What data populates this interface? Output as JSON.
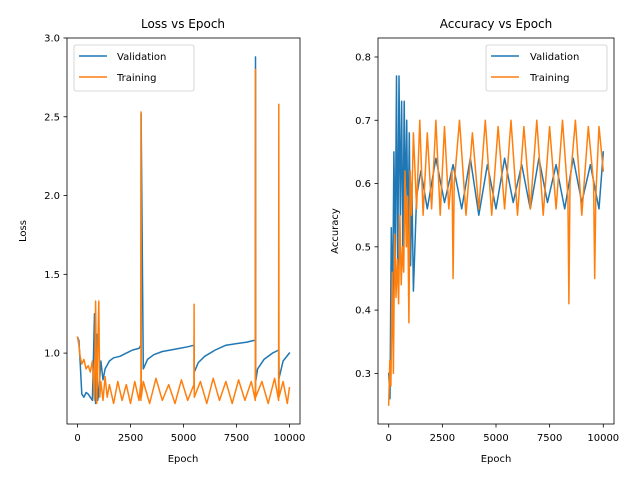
{
  "chart_data": [
    {
      "type": "line",
      "title": "Loss vs Epoch",
      "xlabel": "Epoch",
      "ylabel": "Loss",
      "xlim": [
        -500,
        10500
      ],
      "ylim": [
        0.55,
        3.0
      ],
      "xticks": [
        0,
        2500,
        5000,
        7500,
        10000
      ],
      "xtick_labels": [
        "0",
        "2500",
        "5000",
        "7500",
        "10000"
      ],
      "yticks": [
        1.0,
        1.5,
        2.0,
        2.5,
        3.0
      ],
      "ytick_labels": [
        "1.0",
        "1.5",
        "2.0",
        "2.5",
        "3.0"
      ],
      "grid": false,
      "legend": "top-left",
      "series": [
        {
          "name": "Validation",
          "color": "#1f77b4",
          "x": [
            0,
            60,
            120,
            200,
            300,
            400,
            500,
            600,
            700,
            800,
            850,
            900,
            950,
            1000,
            1100,
            1200,
            1300,
            1500,
            1700,
            2000,
            2300,
            2600,
            2900,
            2990,
            3000,
            3100,
            3300,
            3600,
            4000,
            4400,
            4800,
            5200,
            5500,
            5510,
            5700,
            6000,
            6500,
            7000,
            7500,
            8000,
            8300,
            8390,
            8400,
            8410,
            8500,
            8800,
            9200,
            9500,
            9510,
            9700,
            10000
          ],
          "values": [
            1.1,
            1.08,
            0.95,
            0.74,
            0.72,
            0.75,
            0.74,
            0.72,
            0.7,
            1.25,
            0.68,
            1.12,
            0.7,
            0.75,
            0.95,
            0.83,
            0.9,
            0.95,
            0.97,
            0.98,
            1.0,
            1.02,
            1.03,
            1.05,
            2.52,
            0.9,
            0.96,
            0.99,
            1.01,
            1.02,
            1.03,
            1.04,
            1.05,
            0.88,
            0.94,
            0.98,
            1.02,
            1.05,
            1.06,
            1.07,
            1.08,
            1.08,
            2.88,
            0.82,
            0.9,
            0.96,
            1.0,
            1.02,
            0.84,
            0.95,
            1.0
          ]
        },
        {
          "name": "Training",
          "color": "#ff7f0e",
          "x": [
            0,
            60,
            120,
            200,
            300,
            400,
            500,
            600,
            700,
            800,
            850,
            900,
            950,
            1000,
            1050,
            1100,
            1200,
            1300,
            1400,
            1500,
            1700,
            1900,
            2100,
            2300,
            2500,
            2700,
            2900,
            2980,
            2990,
            3000,
            3010,
            3100,
            3400,
            3700,
            4000,
            4300,
            4600,
            4900,
            5200,
            5490,
            5500,
            5510,
            5800,
            6100,
            6400,
            6700,
            7000,
            7300,
            7600,
            7900,
            8200,
            8390,
            8400,
            8410,
            8700,
            9000,
            9300,
            9490,
            9500,
            9510,
            9700,
            9900,
            10000
          ],
          "values": [
            1.1,
            1.05,
            0.98,
            0.93,
            0.96,
            0.9,
            0.92,
            0.88,
            0.95,
            0.7,
            1.33,
            0.68,
            1.0,
            1.33,
            0.72,
            0.82,
            0.7,
            0.85,
            0.72,
            0.8,
            0.68,
            0.82,
            0.7,
            0.8,
            0.68,
            0.82,
            0.7,
            0.8,
            0.7,
            2.53,
            0.72,
            0.82,
            0.68,
            0.84,
            0.7,
            0.8,
            0.68,
            0.83,
            0.7,
            0.8,
            1.31,
            0.72,
            0.82,
            0.68,
            0.84,
            0.7,
            0.82,
            0.68,
            0.83,
            0.7,
            0.82,
            0.7,
            2.8,
            0.72,
            0.82,
            0.68,
            0.84,
            0.7,
            2.58,
            0.72,
            0.82,
            0.68,
            0.78
          ]
        }
      ]
    },
    {
      "type": "line",
      "title": "Accuracy vs Epoch",
      "xlabel": "Epoch",
      "ylabel": "Accuracy",
      "xlim": [
        -500,
        10500
      ],
      "ylim": [
        0.22,
        0.83
      ],
      "xticks": [
        0,
        2500,
        5000,
        7500,
        10000
      ],
      "xtick_labels": [
        "0",
        "2500",
        "5000",
        "7500",
        "10000"
      ],
      "yticks": [
        0.3,
        0.4,
        0.5,
        0.6,
        0.7,
        0.8
      ],
      "ytick_labels": [
        "0.3",
        "0.4",
        "0.5",
        "0.6",
        "0.7",
        "0.8"
      ],
      "grid": false,
      "legend": "top-right",
      "series": [
        {
          "name": "Validation",
          "color": "#1f77b4",
          "x": [
            0,
            60,
            120,
            180,
            240,
            300,
            360,
            420,
            480,
            540,
            600,
            660,
            720,
            780,
            840,
            900,
            960,
            1020,
            1080,
            1150,
            1300,
            1500,
            1800,
            2200,
            2600,
            3000,
            3400,
            3800,
            4200,
            4600,
            5000,
            5400,
            5800,
            6200,
            6600,
            7000,
            7400,
            7800,
            8200,
            8600,
            9000,
            9400,
            9800,
            10000
          ],
          "values": [
            0.3,
            0.26,
            0.53,
            0.4,
            0.65,
            0.48,
            0.77,
            0.45,
            0.77,
            0.55,
            0.73,
            0.48,
            0.73,
            0.55,
            0.7,
            0.5,
            0.68,
            0.47,
            0.6,
            0.43,
            0.58,
            0.62,
            0.56,
            0.64,
            0.57,
            0.63,
            0.56,
            0.64,
            0.55,
            0.63,
            0.56,
            0.64,
            0.57,
            0.63,
            0.56,
            0.64,
            0.57,
            0.63,
            0.56,
            0.64,
            0.57,
            0.63,
            0.56,
            0.65
          ]
        },
        {
          "name": "Training",
          "color": "#ff7f0e",
          "x": [
            0,
            50,
            100,
            160,
            220,
            280,
            340,
            400,
            460,
            520,
            580,
            640,
            700,
            760,
            820,
            880,
            940,
            1000,
            1060,
            1150,
            1300,
            1450,
            1600,
            1800,
            2000,
            2200,
            2400,
            2600,
            2800,
            2950,
            3000,
            3050,
            3300,
            3600,
            3900,
            4200,
            4500,
            4800,
            5100,
            5400,
            5700,
            6000,
            6300,
            6600,
            6900,
            7200,
            7500,
            7800,
            8100,
            8350,
            8400,
            8450,
            8700,
            9000,
            9300,
            9550,
            9600,
            9650,
            9800,
            10000
          ],
          "values": [
            0.25,
            0.32,
            0.28,
            0.46,
            0.3,
            0.52,
            0.42,
            0.48,
            0.41,
            0.55,
            0.44,
            0.5,
            0.46,
            0.62,
            0.5,
            0.58,
            0.38,
            0.62,
            0.55,
            0.68,
            0.56,
            0.7,
            0.55,
            0.68,
            0.56,
            0.7,
            0.55,
            0.69,
            0.56,
            0.62,
            0.45,
            0.6,
            0.7,
            0.55,
            0.68,
            0.56,
            0.7,
            0.55,
            0.69,
            0.56,
            0.7,
            0.55,
            0.69,
            0.56,
            0.7,
            0.55,
            0.69,
            0.56,
            0.7,
            0.58,
            0.41,
            0.6,
            0.7,
            0.55,
            0.69,
            0.6,
            0.45,
            0.58,
            0.69,
            0.62
          ]
        }
      ]
    }
  ]
}
